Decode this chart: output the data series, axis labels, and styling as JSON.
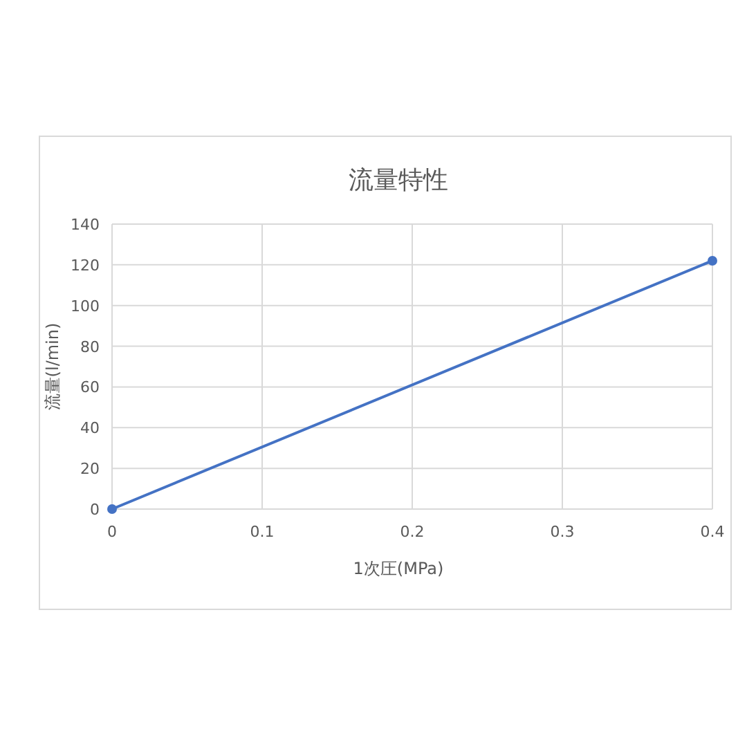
{
  "chart_data": {
    "type": "line",
    "title": "流量特性",
    "xlabel": "1次圧(MPa)",
    "ylabel": "流量(l/min)",
    "x": [
      0,
      0.4
    ],
    "series": [
      {
        "color": "#4472c4",
        "values": [
          0,
          122
        ]
      }
    ],
    "xlim": [
      0,
      0.4
    ],
    "xticks": [
      0,
      0.1,
      0.2,
      0.3,
      0.4
    ],
    "ylim": [
      0,
      140
    ],
    "yticks": [
      0,
      20,
      40,
      60,
      80,
      100,
      120,
      140
    ],
    "grid": true,
    "marker": "circle",
    "line_style": "solid"
  }
}
